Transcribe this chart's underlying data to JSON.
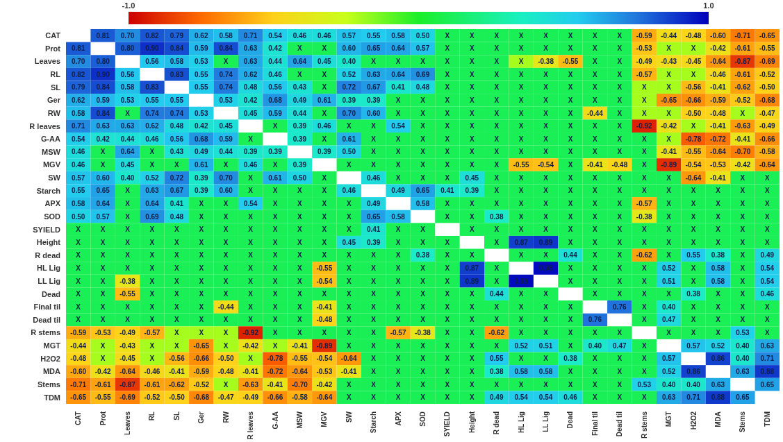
{
  "chart_data": {
    "type": "heatmap",
    "categories": [
      "CAT",
      "Prot",
      "Leaves",
      "RL",
      "SL",
      "Ger",
      "RW",
      "R leaves",
      "G-AA",
      "MSW",
      "MGV",
      "SW",
      "Starch",
      "APX",
      "SOD",
      "SYIELD",
      "Height",
      "R dead",
      "HL Lig",
      "LL Lig",
      "Dead",
      "Final til",
      "Dead til",
      "R stems",
      "MGT",
      "H2O2",
      "MDA",
      "Stems",
      "TDM"
    ],
    "y_categories": [
      "CAT",
      "Prot",
      "Leaves",
      "RL",
      "SL",
      "Ger",
      "RW",
      "R leaves",
      "G-AA",
      "MSW",
      "MGV",
      "SW",
      "Starch",
      "APX",
      "SOD",
      "SYIELD",
      "Height",
      "R dead",
      "HL Lig",
      "LL Lig",
      "Dead",
      "Final til",
      "Dead til",
      "R stems",
      "MGT",
      "H2O2",
      "MDA",
      "Stems",
      "TDM"
    ],
    "clim": [
      -1,
      1
    ],
    "cticks": [
      {
        "value": -1,
        "label": "-1.0"
      },
      {
        "value": 1,
        "label": "1.0"
      }
    ],
    "cells": [
      [
        null,
        0.81,
        0.7,
        0.82,
        0.79,
        0.62,
        0.58,
        0.71,
        0.54,
        0.46,
        0.46,
        0.57,
        0.55,
        0.58,
        0.5,
        0.1,
        0.1,
        0.1,
        0.1,
        0.1,
        0.1,
        0.1,
        0.1,
        -0.59,
        -0.44,
        -0.48,
        -0.6,
        -0.71,
        -0.65
      ],
      [
        0.81,
        null,
        0.8,
        0.9,
        0.84,
        0.59,
        0.84,
        0.63,
        0.42,
        0.1,
        0.1,
        0.6,
        0.65,
        0.64,
        0.57,
        0.1,
        0.1,
        0.1,
        0.1,
        0.1,
        0.1,
        0.1,
        0.1,
        -0.53,
        -0.2,
        -0.2,
        -0.42,
        -0.61,
        -0.55
      ],
      [
        0.7,
        0.8,
        null,
        0.56,
        0.58,
        0.53,
        0.1,
        0.63,
        0.44,
        0.64,
        0.45,
        0.4,
        0.1,
        0.1,
        0.1,
        0.1,
        0.1,
        0.1,
        -0.2,
        -0.38,
        -0.55,
        0.1,
        0.1,
        -0.49,
        -0.43,
        -0.45,
        -0.64,
        -0.87,
        -0.69
      ],
      [
        0.82,
        0.9,
        0.56,
        null,
        0.83,
        0.55,
        0.74,
        0.62,
        0.46,
        0.1,
        0.1,
        0.52,
        0.63,
        0.64,
        0.69,
        0.1,
        0.1,
        0.1,
        0.1,
        0.1,
        0.1,
        0.1,
        0.1,
        -0.57,
        -0.2,
        -0.2,
        -0.46,
        -0.61,
        -0.52
      ],
      [
        0.79,
        0.84,
        0.58,
        0.83,
        null,
        0.55,
        0.74,
        0.48,
        0.56,
        0.43,
        0.1,
        0.72,
        0.67,
        0.41,
        0.48,
        0.1,
        0.1,
        0.1,
        0.1,
        0.1,
        0.1,
        0.1,
        0.1,
        -0.2,
        -0.2,
        -0.56,
        -0.41,
        -0.62,
        -0.5
      ],
      [
        0.62,
        0.59,
        0.53,
        0.55,
        0.55,
        null,
        0.53,
        0.42,
        0.68,
        0.49,
        0.61,
        0.39,
        0.39,
        0.1,
        0.1,
        0.1,
        0.1,
        0.1,
        0.1,
        0.1,
        0.1,
        0.1,
        0.1,
        -0.2,
        -0.65,
        -0.66,
        -0.59,
        -0.52,
        -0.68
      ],
      [
        0.58,
        0.84,
        0.1,
        0.74,
        0.74,
        0.53,
        null,
        0.45,
        0.59,
        0.44,
        0.1,
        0.7,
        0.6,
        0.1,
        0.1,
        0.1,
        0.1,
        0.1,
        0.1,
        0.1,
        0.1,
        -0.44,
        0.1,
        -0.2,
        -0.2,
        -0.5,
        -0.48,
        -0.2,
        -0.47
      ],
      [
        0.71,
        0.63,
        0.63,
        0.62,
        0.48,
        0.42,
        0.45,
        null,
        0.1,
        0.39,
        0.46,
        0.1,
        0.1,
        0.54,
        0.1,
        0.1,
        0.1,
        0.1,
        0.1,
        0.1,
        0.1,
        0.1,
        0.1,
        -0.92,
        -0.42,
        -0.2,
        -0.41,
        -0.63,
        -0.49
      ],
      [
        0.54,
        0.42,
        0.44,
        0.46,
        0.56,
        0.68,
        0.59,
        0.1,
        null,
        0.39,
        0.1,
        0.61,
        0.1,
        0.1,
        0.1,
        0.1,
        0.1,
        0.1,
        0.1,
        0.1,
        0.1,
        0.1,
        0.1,
        0.1,
        -0.2,
        -0.78,
        -0.72,
        -0.41,
        -0.66
      ],
      [
        0.46,
        0.1,
        0.64,
        0.1,
        0.43,
        0.49,
        0.44,
        0.39,
        0.39,
        null,
        0.39,
        0.5,
        0.1,
        0.1,
        0.1,
        0.1,
        0.1,
        0.1,
        0.1,
        0.1,
        0.1,
        0.1,
        0.1,
        0.1,
        -0.41,
        -0.55,
        -0.64,
        -0.7,
        -0.58
      ],
      [
        0.46,
        0.1,
        0.45,
        0.1,
        0.1,
        0.61,
        0.1,
        0.46,
        0.1,
        0.39,
        null,
        0.1,
        0.1,
        0.1,
        0.1,
        0.1,
        0.1,
        0.1,
        -0.55,
        -0.54,
        0.1,
        -0.41,
        -0.48,
        0.1,
        -0.89,
        -0.54,
        -0.53,
        -0.42,
        -0.64
      ],
      [
        0.57,
        0.6,
        0.4,
        0.52,
        0.72,
        0.39,
        0.7,
        0.1,
        0.61,
        0.5,
        0.1,
        null,
        0.46,
        0.1,
        0.1,
        0.1,
        0.45,
        0.1,
        0.1,
        0.1,
        0.1,
        0.1,
        0.1,
        0.1,
        0.1,
        -0.64,
        -0.41,
        0.1,
        0.1
      ],
      [
        0.55,
        0.65,
        0.1,
        0.63,
        0.67,
        0.39,
        0.6,
        0.1,
        0.1,
        0.1,
        0.1,
        0.46,
        null,
        0.49,
        0.65,
        0.41,
        0.39,
        0.1,
        0.1,
        0.1,
        0.1,
        0.1,
        0.1,
        0.1,
        0.1,
        0.1,
        0.1,
        0.1,
        0.1
      ],
      [
        0.58,
        0.64,
        0.1,
        0.64,
        0.41,
        0.1,
        0.1,
        0.54,
        0.1,
        0.1,
        0.1,
        0.1,
        0.49,
        null,
        0.58,
        0.1,
        0.1,
        0.1,
        0.1,
        0.1,
        0.1,
        0.1,
        0.1,
        -0.57,
        0.1,
        0.1,
        0.1,
        0.1,
        0.1
      ],
      [
        0.5,
        0.57,
        0.1,
        0.69,
        0.48,
        0.1,
        0.1,
        0.1,
        0.1,
        0.1,
        0.1,
        0.1,
        0.65,
        0.58,
        null,
        0.1,
        0.1,
        0.38,
        0.1,
        0.1,
        0.1,
        0.1,
        0.1,
        -0.38,
        0.1,
        0.1,
        0.1,
        0.1,
        0.1
      ],
      [
        0.1,
        0.1,
        0.1,
        0.1,
        0.1,
        0.1,
        0.1,
        0.1,
        0.1,
        0.1,
        0.1,
        0.1,
        0.41,
        0.1,
        0.1,
        null,
        0.1,
        0.1,
        0.1,
        0.1,
        0.1,
        0.1,
        0.1,
        0.1,
        0.1,
        0.1,
        0.1,
        0.1,
        0.1
      ],
      [
        0.1,
        0.1,
        0.1,
        0.1,
        0.1,
        0.1,
        0.1,
        0.1,
        0.1,
        0.1,
        0.1,
        0.45,
        0.39,
        0.1,
        0.1,
        0.1,
        null,
        0.1,
        0.87,
        0.89,
        0.1,
        0.1,
        0.1,
        0.1,
        0.1,
        0.1,
        0.1,
        0.1,
        0.1
      ],
      [
        0.1,
        0.1,
        0.1,
        0.1,
        0.1,
        0.1,
        0.1,
        0.1,
        0.1,
        0.1,
        0.1,
        0.1,
        0.1,
        0.1,
        0.38,
        0.1,
        0.1,
        null,
        0.1,
        0.1,
        0.44,
        0.1,
        0.1,
        -0.62,
        0.1,
        0.55,
        0.38,
        0.1,
        0.49
      ],
      [
        0.1,
        0.1,
        0.1,
        0.1,
        0.1,
        0.1,
        0.1,
        0.1,
        0.1,
        0.1,
        -0.55,
        0.1,
        0.1,
        0.1,
        0.1,
        0.1,
        0.87,
        0.1,
        null,
        0.98,
        0.1,
        0.1,
        0.1,
        0.1,
        0.52,
        0.1,
        0.58,
        0.1,
        0.54
      ],
      [
        0.1,
        0.1,
        -0.38,
        0.1,
        0.1,
        0.1,
        0.1,
        0.1,
        0.1,
        0.1,
        -0.54,
        0.1,
        0.1,
        0.1,
        0.1,
        0.1,
        0.89,
        0.1,
        0.98,
        null,
        0.1,
        0.1,
        0.1,
        0.1,
        0.51,
        0.1,
        0.58,
        0.1,
        0.54
      ],
      [
        0.1,
        0.1,
        -0.55,
        0.1,
        0.1,
        0.1,
        0.1,
        0.1,
        0.1,
        0.1,
        0.1,
        0.1,
        0.1,
        0.1,
        0.1,
        0.1,
        0.1,
        0.44,
        0.1,
        0.1,
        null,
        0.1,
        0.1,
        0.1,
        0.1,
        0.38,
        0.1,
        0.1,
        0.46
      ],
      [
        0.1,
        0.1,
        0.1,
        0.1,
        0.1,
        0.1,
        -0.44,
        0.1,
        0.1,
        0.1,
        -0.41,
        0.1,
        0.1,
        0.1,
        0.1,
        0.1,
        0.1,
        0.1,
        0.1,
        0.1,
        0.1,
        null,
        0.76,
        0.1,
        0.4,
        0.1,
        0.1,
        0.1,
        0.1
      ],
      [
        0.1,
        0.1,
        0.1,
        0.1,
        0.1,
        0.1,
        0.1,
        0.1,
        0.1,
        0.1,
        -0.48,
        0.1,
        0.1,
        0.1,
        0.1,
        0.1,
        0.1,
        0.1,
        0.1,
        0.1,
        0.1,
        0.76,
        null,
        0.1,
        0.47,
        0.1,
        0.1,
        0.1,
        0.1
      ],
      [
        -0.59,
        -0.53,
        -0.49,
        -0.57,
        -0.2,
        -0.2,
        -0.2,
        -0.92,
        0.1,
        0.1,
        0.1,
        0.1,
        0.1,
        -0.57,
        -0.38,
        0.1,
        0.1,
        -0.62,
        0.1,
        0.1,
        0.1,
        0.1,
        0.1,
        null,
        0.1,
        0.1,
        0.1,
        0.53,
        0.1
      ],
      [
        -0.44,
        -0.2,
        -0.43,
        -0.2,
        -0.2,
        -0.65,
        -0.2,
        -0.42,
        -0.2,
        -0.41,
        -0.89,
        0.1,
        0.1,
        0.1,
        0.1,
        0.1,
        0.1,
        0.1,
        0.52,
        0.51,
        0.1,
        0.4,
        0.47,
        0.1,
        null,
        0.57,
        0.52,
        0.4,
        0.63
      ],
      [
        -0.48,
        -0.2,
        -0.45,
        -0.2,
        -0.56,
        -0.66,
        -0.5,
        -0.2,
        -0.78,
        -0.55,
        -0.54,
        -0.64,
        0.1,
        0.1,
        0.1,
        0.1,
        0.1,
        0.55,
        0.1,
        0.1,
        0.38,
        0.1,
        0.1,
        0.1,
        0.57,
        null,
        0.86,
        0.4,
        0.71
      ],
      [
        -0.6,
        -0.42,
        -0.64,
        -0.46,
        -0.41,
        -0.59,
        -0.48,
        -0.41,
        -0.72,
        -0.64,
        -0.53,
        -0.41,
        0.1,
        0.1,
        0.1,
        0.1,
        0.1,
        0.38,
        0.58,
        0.58,
        0.1,
        0.1,
        0.1,
        0.1,
        0.52,
        0.86,
        null,
        0.63,
        0.88
      ],
      [
        -0.71,
        -0.61,
        -0.87,
        -0.61,
        -0.62,
        -0.52,
        -0.2,
        -0.63,
        -0.41,
        -0.7,
        -0.42,
        0.1,
        0.1,
        0.1,
        0.1,
        0.1,
        0.1,
        0.1,
        0.1,
        0.1,
        0.1,
        0.1,
        0.1,
        0.53,
        0.4,
        0.4,
        0.63,
        null,
        0.65
      ],
      [
        -0.65,
        -0.55,
        -0.69,
        -0.52,
        -0.5,
        -0.68,
        -0.47,
        -0.49,
        -0.66,
        -0.58,
        -0.64,
        0.1,
        0.1,
        0.1,
        0.1,
        0.1,
        0.1,
        0.49,
        0.54,
        0.54,
        0.46,
        0.1,
        0.1,
        0.1,
        0.63,
        0.71,
        0.88,
        0.65,
        null
      ]
    ],
    "cell_labels": [
      [
        null,
        "0.81",
        "0.70",
        "0.82",
        "0.79",
        "0.62",
        "0.58",
        "0.71",
        "0.54",
        "0.46",
        "0.46",
        "0.57",
        "0.55",
        "0.58",
        "0.50",
        "X",
        "X",
        "X",
        "X",
        "X",
        "X",
        "X",
        "X",
        "-0.59",
        "-0.44",
        "-0.48",
        "-0.60",
        "-0.71",
        "-0.65"
      ],
      [
        "0.81",
        null,
        "0.80",
        "0.90",
        "0.84",
        "0.59",
        "0.84",
        "0.63",
        "0.42",
        "X",
        "X",
        "0.60",
        "0.65",
        "0.64",
        "0.57",
        "X",
        "X",
        "X",
        "X",
        "X",
        "X",
        "X",
        "X",
        "-0.53",
        "X",
        "X",
        "-0.42",
        "-0.61",
        "-0.55"
      ],
      [
        "0.70",
        "0.80",
        null,
        "0.56",
        "0.58",
        "0.53",
        "X",
        "0.63",
        "0.44",
        "0.64",
        "0.45",
        "0.40",
        "X",
        "X",
        "X",
        "X",
        "X",
        "X",
        "X",
        "-0.38",
        "-0.55",
        "X",
        "X",
        "-0.49",
        "-0.43",
        "-0.45",
        "-0.64",
        "-0.87",
        "-0.69"
      ],
      [
        "0.82",
        "0.90",
        "0.56",
        null,
        "0.83",
        "0.55",
        "0.74",
        "0.62",
        "0.46",
        "X",
        "X",
        "0.52",
        "0.63",
        "0.64",
        "0.69",
        "X",
        "X",
        "X",
        "X",
        "X",
        "X",
        "X",
        "X",
        "-0.57",
        "X",
        "X",
        "-0.46",
        "-0.61",
        "-0.52"
      ],
      [
        "0.79",
        "0.84",
        "0.58",
        "0.83",
        null,
        "0.55",
        "0.74",
        "0.48",
        "0.56",
        "0.43",
        "X",
        "0.72",
        "0.67",
        "0.41",
        "0.48",
        "X",
        "X",
        "X",
        "X",
        "X",
        "X",
        "X",
        "X",
        "X",
        "X",
        "-0.56",
        "-0.41",
        "-0.62",
        "-0.50"
      ],
      [
        "0.62",
        "0.59",
        "0.53",
        "0.55",
        "0.55",
        null,
        "0.53",
        "0.42",
        "0.68",
        "0.49",
        "0.61",
        "0.39",
        "0.39",
        "X",
        "X",
        "X",
        "X",
        "X",
        "X",
        "X",
        "X",
        "X",
        "X",
        "X",
        "-0.65",
        "-0.66",
        "-0.59",
        "-0.52",
        "-0.68"
      ],
      [
        "0.58",
        "0.84",
        "X",
        "0.74",
        "0.74",
        "0.53",
        null,
        "0.45",
        "0.59",
        "0.44",
        "X",
        "0.70",
        "0.60",
        "X",
        "X",
        "X",
        "X",
        "X",
        "X",
        "X",
        "X",
        "-0.44",
        "X",
        "X",
        "X",
        "-0.50",
        "-0.48",
        "X",
        "-0.47"
      ],
      [
        "0.71",
        "0.63",
        "0.63",
        "0.62",
        "0.48",
        "0.42",
        "0.45",
        null,
        "X",
        "0.39",
        "0.46",
        "X",
        "X",
        "0.54",
        "X",
        "X",
        "X",
        "X",
        "X",
        "X",
        "X",
        "X",
        "X",
        "-0.92",
        "-0.42",
        "X",
        "-0.41",
        "-0.63",
        "-0.49"
      ],
      [
        "0.54",
        "0.42",
        "0.44",
        "0.46",
        "0.56",
        "0.68",
        "0.59",
        "X",
        null,
        "0.39",
        "X",
        "0.61",
        "X",
        "X",
        "X",
        "X",
        "X",
        "X",
        "X",
        "X",
        "X",
        "X",
        "X",
        "X",
        "X",
        "-0.78",
        "-0.72",
        "-0.41",
        "-0.66"
      ],
      [
        "0.46",
        "X",
        "0.64",
        "X",
        "0.43",
        "0.49",
        "0.44",
        "0.39",
        "0.39",
        null,
        "0.39",
        "0.50",
        "X",
        "X",
        "X",
        "X",
        "X",
        "X",
        "X",
        "X",
        "X",
        "X",
        "X",
        "X",
        "-0.41",
        "-0.55",
        "-0.64",
        "-0.70",
        "-0.58"
      ],
      [
        "0.46",
        "X",
        "0.45",
        "X",
        "X",
        "0.61",
        "X",
        "0.46",
        "X",
        "0.39",
        null,
        "X",
        "X",
        "X",
        "X",
        "X",
        "X",
        "X",
        "-0.55",
        "-0.54",
        "X",
        "-0.41",
        "-0.48",
        "X",
        "-0.89",
        "-0.54",
        "-0.53",
        "-0.42",
        "-0.64"
      ],
      [
        "0.57",
        "0.60",
        "0.40",
        "0.52",
        "0.72",
        "0.39",
        "0.70",
        "X",
        "0.61",
        "0.50",
        "X",
        null,
        "0.46",
        "X",
        "X",
        "X",
        "0.45",
        "X",
        "X",
        "X",
        "X",
        "X",
        "X",
        "X",
        "X",
        "-0.64",
        "-0.41",
        "X",
        "X"
      ],
      [
        "0.55",
        "0.65",
        "X",
        "0.63",
        "0.67",
        "0.39",
        "0.60",
        "X",
        "X",
        "X",
        "X",
        "0.46",
        null,
        "0.49",
        "0.65",
        "0.41",
        "0.39",
        "X",
        "X",
        "X",
        "X",
        "X",
        "X",
        "X",
        "X",
        "X",
        "X",
        "X",
        "X"
      ],
      [
        "0.58",
        "0.64",
        "X",
        "0.64",
        "0.41",
        "X",
        "X",
        "0.54",
        "X",
        "X",
        "X",
        "X",
        "0.49",
        null,
        "0.58",
        "X",
        "X",
        "X",
        "X",
        "X",
        "X",
        "X",
        "X",
        "-0.57",
        "X",
        "X",
        "X",
        "X",
        "X"
      ],
      [
        "0.50",
        "0.57",
        "X",
        "0.69",
        "0.48",
        "X",
        "X",
        "X",
        "X",
        "X",
        "X",
        "X",
        "0.65",
        "0.58",
        null,
        "X",
        "X",
        "0.38",
        "X",
        "X",
        "X",
        "X",
        "X",
        "-0.38",
        "X",
        "X",
        "X",
        "X",
        "X"
      ],
      [
        "X",
        "X",
        "X",
        "X",
        "X",
        "X",
        "X",
        "X",
        "X",
        "X",
        "X",
        "X",
        "0.41",
        "X",
        "X",
        null,
        "X",
        "X",
        "X",
        "X",
        "X",
        "X",
        "X",
        "X",
        "X",
        "X",
        "X",
        "X",
        "X"
      ],
      [
        "X",
        "X",
        "X",
        "X",
        "X",
        "X",
        "X",
        "X",
        "X",
        "X",
        "X",
        "0.45",
        "0.39",
        "X",
        "X",
        "X",
        null,
        "X",
        "0.87",
        "0.89",
        "X",
        "X",
        "X",
        "X",
        "X",
        "X",
        "X",
        "X",
        "X"
      ],
      [
        "X",
        "X",
        "X",
        "X",
        "X",
        "X",
        "X",
        "X",
        "X",
        "X",
        "X",
        "X",
        "X",
        "X",
        "0.38",
        "X",
        "X",
        null,
        "X",
        "X",
        "0.44",
        "X",
        "X",
        "-0.62",
        "X",
        "0.55",
        "0.38",
        "X",
        "0.49"
      ],
      [
        "X",
        "X",
        "X",
        "X",
        "X",
        "X",
        "X",
        "X",
        "X",
        "X",
        "-0.55",
        "X",
        "X",
        "X",
        "X",
        "X",
        "0.87",
        "X",
        null,
        "0.98",
        "X",
        "X",
        "X",
        "X",
        "0.52",
        "X",
        "0.58",
        "X",
        "0.54"
      ],
      [
        "X",
        "X",
        "-0.38",
        "X",
        "X",
        "X",
        "X",
        "X",
        "X",
        "X",
        "-0.54",
        "X",
        "X",
        "X",
        "X",
        "X",
        "0.89",
        "X",
        "0.98",
        null,
        "X",
        "X",
        "X",
        "X",
        "0.51",
        "X",
        "0.58",
        "X",
        "0.54"
      ],
      [
        "X",
        "X",
        "-0.55",
        "X",
        "X",
        "X",
        "X",
        "X",
        "X",
        "X",
        "X",
        "X",
        "X",
        "X",
        "X",
        "X",
        "X",
        "0.44",
        "X",
        "X",
        null,
        "X",
        "X",
        "X",
        "X",
        "0.38",
        "X",
        "X",
        "0.46"
      ],
      [
        "X",
        "X",
        "X",
        "X",
        "X",
        "X",
        "-0.44",
        "X",
        "X",
        "X",
        "-0.41",
        "X",
        "X",
        "X",
        "X",
        "X",
        "X",
        "X",
        "X",
        "X",
        "X",
        null,
        "0.76",
        "X",
        "0.40",
        "X",
        "X",
        "X",
        "X"
      ],
      [
        "X",
        "X",
        "X",
        "X",
        "X",
        "X",
        "X",
        "X",
        "X",
        "X",
        "-0.48",
        "X",
        "X",
        "X",
        "X",
        "X",
        "X",
        "X",
        "X",
        "X",
        "X",
        "0.76",
        null,
        "X",
        "0.47",
        "X",
        "X",
        "X",
        "X"
      ],
      [
        "-0.59",
        "-0.53",
        "-0.49",
        "-0.57",
        "X",
        "X",
        "X",
        "-0.92",
        "X",
        "X",
        "X",
        "X",
        "X",
        "-0.57",
        "-0.38",
        "X",
        "X",
        "-0.62",
        "X",
        "X",
        "X",
        "X",
        "X",
        null,
        "X",
        "X",
        "X",
        "0.53",
        "X"
      ],
      [
        "-0.44",
        "X",
        "-0.43",
        "X",
        "X",
        "-0.65",
        "X",
        "-0.42",
        "X",
        "-0.41",
        "-0.89",
        "X",
        "X",
        "X",
        "X",
        "X",
        "X",
        "X",
        "0.52",
        "0.51",
        "X",
        "0.40",
        "0.47",
        "X",
        null,
        "0.57",
        "0.52",
        "0.40",
        "0.63"
      ],
      [
        "-0.48",
        "X",
        "-0.45",
        "X",
        "-0.56",
        "-0.66",
        "-0.50",
        "X",
        "-0.78",
        "-0.55",
        "-0.54",
        "-0.64",
        "X",
        "X",
        "X",
        "X",
        "X",
        "0.55",
        "X",
        "X",
        "0.38",
        "X",
        "X",
        "X",
        "0.57",
        null,
        "0.86",
        "0.40",
        "0.71"
      ],
      [
        "-0.60",
        "-0.42",
        "-0.64",
        "-0.46",
        "-0.41",
        "-0.59",
        "-0.48",
        "-0.41",
        "-0.72",
        "-0.64",
        "-0.53",
        "-0.41",
        "X",
        "X",
        "X",
        "X",
        "X",
        "0.38",
        "0.58",
        "0.58",
        "X",
        "X",
        "X",
        "X",
        "0.52",
        "0.86",
        null,
        "0.63",
        "0.88"
      ],
      [
        "-0.71",
        "-0.61",
        "-0.87",
        "-0.61",
        "-0.62",
        "-0.52",
        "X",
        "-0.63",
        "-0.41",
        "-0.70",
        "-0.42",
        "X",
        "X",
        "X",
        "X",
        "X",
        "X",
        "X",
        "X",
        "X",
        "X",
        "X",
        "X",
        "0.53",
        "0.40",
        "0.40",
        "0.63",
        null,
        "0.65"
      ],
      [
        "-0.65",
        "-0.55",
        "-0.69",
        "-0.52",
        "-0.50",
        "-0.68",
        "-0.47",
        "-0.49",
        "-0.66",
        "-0.58",
        "-0.64",
        "X",
        "X",
        "X",
        "X",
        "X",
        "X",
        "0.49",
        "0.54",
        "0.54",
        "0.46",
        "X",
        "X",
        "X",
        "0.63",
        "0.71",
        "0.88",
        "0.65",
        null
      ]
    ]
  }
}
